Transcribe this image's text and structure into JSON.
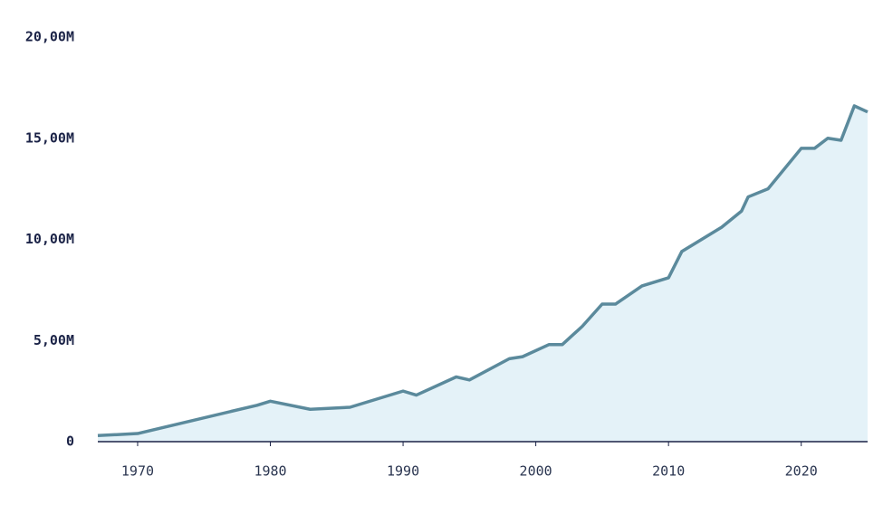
{
  "chart_data": {
    "type": "area",
    "x": [
      1967,
      1970,
      1979,
      1980,
      1983,
      1986,
      1990,
      1991,
      1994,
      1995,
      1998,
      1999,
      2001,
      2002,
      2003.5,
      2005,
      2006,
      2008,
      2010,
      2011,
      2014,
      2015.5,
      2016,
      2017.5,
      2020,
      2021,
      2022,
      2023,
      2024,
      2025
    ],
    "series": [
      {
        "color": "#5b8a9c",
        "fill": "#e4f2f8",
        "values": [
          300000,
          400000,
          1800000,
          2000000,
          1600000,
          1700000,
          2500000,
          2300000,
          3200000,
          3050000,
          4100000,
          4200000,
          4800000,
          4800000,
          5700000,
          6800000,
          6800000,
          7700000,
          8100000,
          9400000,
          10600000,
          11400000,
          12100000,
          12500000,
          14500000,
          14500000,
          15000000,
          14900000,
          16600000,
          16300000
        ]
      }
    ],
    "xlim": [
      1967,
      2025
    ],
    "xticks": [
      1970,
      1980,
      1990,
      2000,
      2010,
      2020
    ],
    "ylim": [
      0,
      20000000
    ],
    "yticks": [
      0,
      {
        "value": 5000000,
        "label": "5,00M"
      },
      {
        "value": 10000000,
        "label": "10,00M"
      },
      {
        "value": 15000000,
        "label": "15,00M"
      },
      {
        "value": 20000000,
        "label": "20,00M"
      }
    ],
    "grid": false
  }
}
